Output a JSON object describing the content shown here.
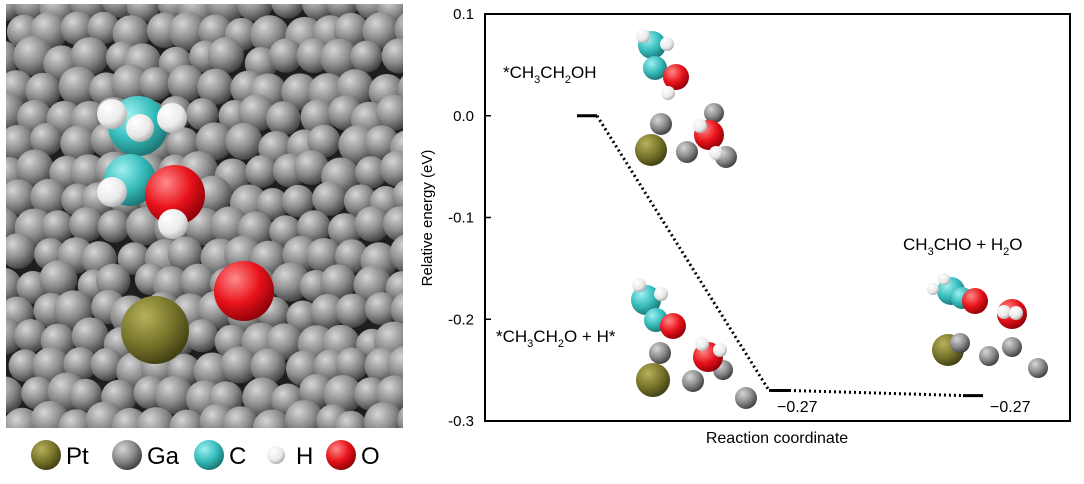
{
  "legend": [
    {
      "label": "Pt",
      "color": "#7d7a30"
    },
    {
      "label": "Ga",
      "color": "#8c8c8c"
    },
    {
      "label": "C",
      "color": "#3cc2c2"
    },
    {
      "label": "H",
      "color": "#f2f2f2"
    },
    {
      "label": "O",
      "color": "#e8121a"
    }
  ],
  "chart_data": {
    "type": "line",
    "xlabel": "Reaction coordinate",
    "ylabel": "Relative energy (eV)",
    "ylim": [
      -0.3,
      0.1
    ],
    "yticks": [
      "0.1",
      "0.0",
      "-0.1",
      "-0.2",
      "-0.3"
    ],
    "grid": false,
    "states": [
      {
        "name": "*CH3CH2OH",
        "x": 0,
        "y": 0.0
      },
      {
        "name": "*CH3CH2O + H*",
        "x": 1,
        "y": -0.27
      },
      {
        "name": "CH3CHO + H2O",
        "x": 2,
        "y": -0.275
      }
    ],
    "annotations": [
      "−0.27",
      "−0.27"
    ],
    "state_labels": {
      "s0": {
        "pre": "*CH",
        "sub1": "3",
        "mid": "CH",
        "sub2": "2",
        "post": "OH"
      },
      "s1": {
        "pre": "*CH",
        "sub1": "3",
        "mid": "CH",
        "sub2": "2",
        "post": "O + H*"
      },
      "s2": {
        "pre": "CH",
        "sub1": "3",
        "mid": "CHO + H",
        "sub2": "2",
        "post": "O"
      }
    }
  }
}
